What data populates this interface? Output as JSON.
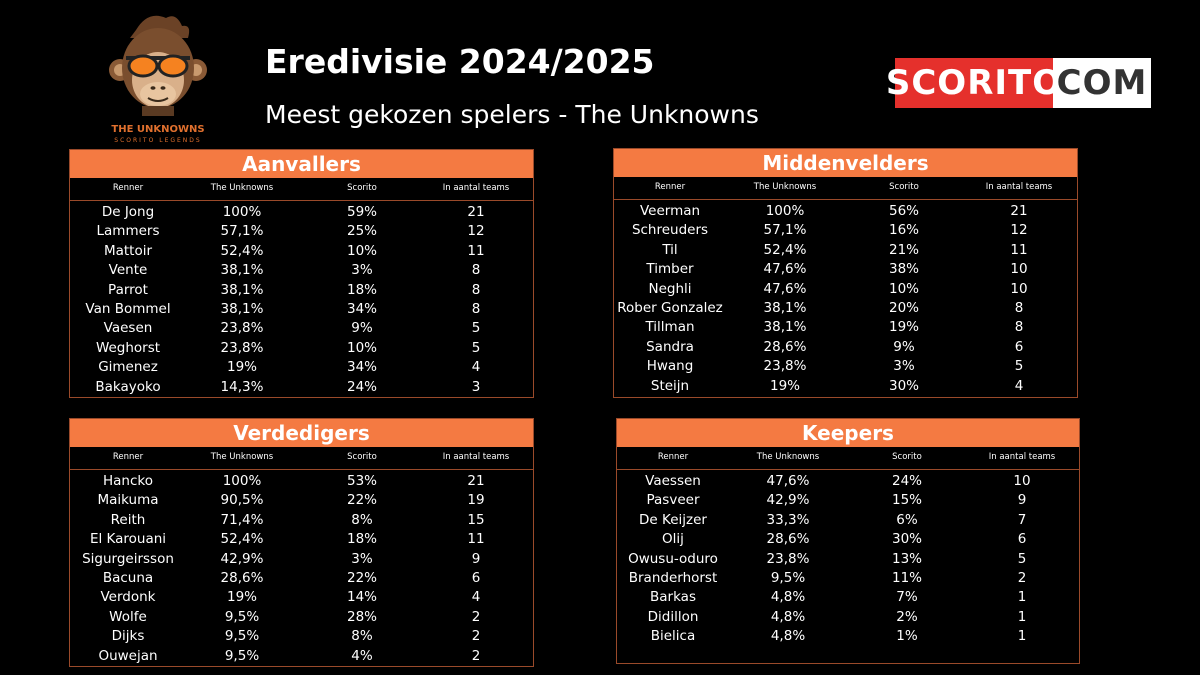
{
  "header": {
    "title": "Eredivisie 2024/2025",
    "subtitle": "Meest gekozen spelers - The Unknowns",
    "logo_text": "THE UNKNOWNS",
    "logo_subtext": "SCORITO LEGENDS",
    "brand_left": "SCORITO",
    "brand_right": "COM"
  },
  "colors": {
    "accent": "#f47a42",
    "border": "#9a4a2a",
    "brand_red": "#e5302c",
    "background": "#000000"
  },
  "chart_data": [
    {
      "type": "table",
      "title": "Aanvallers",
      "columns": [
        "Renner",
        "The Unknowns",
        "Scorito",
        "In aantal teams"
      ],
      "rows": [
        [
          "De Jong",
          "100%",
          "59%",
          "21"
        ],
        [
          "Lammers",
          "57,1%",
          "25%",
          "12"
        ],
        [
          "Mattoir",
          "52,4%",
          "10%",
          "11"
        ],
        [
          "Vente",
          "38,1%",
          "3%",
          "8"
        ],
        [
          "Parrot",
          "38,1%",
          "18%",
          "8"
        ],
        [
          "Van Bommel",
          "38,1%",
          "34%",
          "8"
        ],
        [
          "Vaesen",
          "23,8%",
          "9%",
          "5"
        ],
        [
          "Weghorst",
          "23,8%",
          "10%",
          "5"
        ],
        [
          "Gimenez",
          "19%",
          "34%",
          "4"
        ],
        [
          "Bakayoko",
          "14,3%",
          "24%",
          "3"
        ]
      ]
    },
    {
      "type": "table",
      "title": "Middenvelders",
      "columns": [
        "Renner",
        "The Unknowns",
        "Scorito",
        "In aantal teams"
      ],
      "rows": [
        [
          "Veerman",
          "100%",
          "56%",
          "21"
        ],
        [
          "Schreuders",
          "57,1%",
          "16%",
          "12"
        ],
        [
          "Til",
          "52,4%",
          "21%",
          "11"
        ],
        [
          "Timber",
          "47,6%",
          "38%",
          "10"
        ],
        [
          "Neghli",
          "47,6%",
          "10%",
          "10"
        ],
        [
          "Rober Gonzalez",
          "38,1%",
          "20%",
          "8"
        ],
        [
          "Tillman",
          "38,1%",
          "19%",
          "8"
        ],
        [
          "Sandra",
          "28,6%",
          "9%",
          "6"
        ],
        [
          "Hwang",
          "23,8%",
          "3%",
          "5"
        ],
        [
          "Steijn",
          "19%",
          "30%",
          "4"
        ]
      ]
    },
    {
      "type": "table",
      "title": "Verdedigers",
      "columns": [
        "Renner",
        "The Unknowns",
        "Scorito",
        "In aantal teams"
      ],
      "rows": [
        [
          "Hancko",
          "100%",
          "53%",
          "21"
        ],
        [
          "Maikuma",
          "90,5%",
          "22%",
          "19"
        ],
        [
          "Reith",
          "71,4%",
          "8%",
          "15"
        ],
        [
          "El Karouani",
          "52,4%",
          "18%",
          "11"
        ],
        [
          "Sigurgeirsson",
          "42,9%",
          "3%",
          "9"
        ],
        [
          "Bacuna",
          "28,6%",
          "22%",
          "6"
        ],
        [
          "Verdonk",
          "19%",
          "14%",
          "4"
        ],
        [
          "Wolfe",
          "9,5%",
          "28%",
          "2"
        ],
        [
          "Dijks",
          "9,5%",
          "8%",
          "2"
        ],
        [
          "Ouwejan",
          "9,5%",
          "4%",
          "2"
        ]
      ]
    },
    {
      "type": "table",
      "title": "Keepers",
      "columns": [
        "Renner",
        "The Unknowns",
        "Scorito",
        "In aantal teams"
      ],
      "rows": [
        [
          "Vaessen",
          "47,6%",
          "24%",
          "10"
        ],
        [
          "Pasveer",
          "42,9%",
          "15%",
          "9"
        ],
        [
          "De Keijzer",
          "33,3%",
          "6%",
          "7"
        ],
        [
          "Olij",
          "28,6%",
          "30%",
          "6"
        ],
        [
          "Owusu-oduro",
          "23,8%",
          "13%",
          "5"
        ],
        [
          "Branderhorst",
          "9,5%",
          "11%",
          "2"
        ],
        [
          "Barkas",
          "4,8%",
          "7%",
          "1"
        ],
        [
          "Didillon",
          "4,8%",
          "2%",
          "1"
        ],
        [
          "Bielica",
          "4,8%",
          "1%",
          "1"
        ]
      ]
    }
  ]
}
